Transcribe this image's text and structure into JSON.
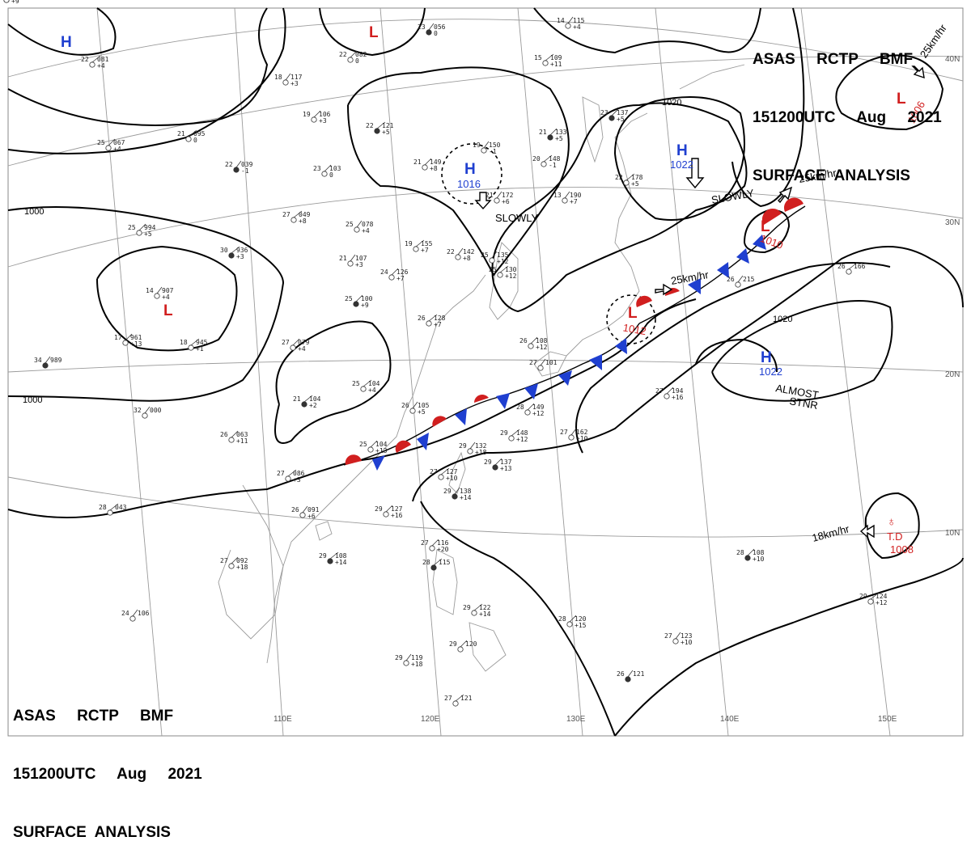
{
  "header": {
    "line1": "ASAS     RCTP     BMF",
    "line2": "151200UTC     Aug     2021",
    "line3": "SURFACE  ANALYSIS"
  },
  "footer": {
    "line1": "ASAS     RCTP     BMF",
    "line2": "151200UTC     Aug     2021",
    "line3": "SURFACE  ANALYSIS"
  },
  "grid_labels": {
    "lon": [
      "110E",
      "120E",
      "130E",
      "140E",
      "150E"
    ],
    "lat": [
      "40N",
      "30N",
      "20N",
      "10N"
    ]
  },
  "isobar_labels": [
    "1000",
    "1000",
    "1020",
    "1020"
  ],
  "pressure_centers": [
    {
      "type": "H",
      "value": "",
      "color": "#1f3fd0"
    },
    {
      "type": "L",
      "value": "",
      "color": "#d11f1f"
    },
    {
      "type": "H",
      "value": "1016",
      "color": "#1f3fd0"
    },
    {
      "type": "H",
      "value": "1022",
      "color": "#1f3fd0"
    },
    {
      "type": "L",
      "value": "1006",
      "color": "#d11f1f"
    },
    {
      "type": "L",
      "value": "1010",
      "color": "#d11f1f"
    },
    {
      "type": "L",
      "value": "1012",
      "color": "#d11f1f"
    },
    {
      "type": "H",
      "value": "1022",
      "color": "#1f3fd0"
    },
    {
      "type": "L",
      "value": "",
      "color": "#d11f1f"
    },
    {
      "type": "TD",
      "value": "1008",
      "label": "T.D",
      "color": "#d11f1f"
    }
  ],
  "motion_labels": [
    "SLOWLY",
    "SLOWLY",
    "25km/hr",
    "25km/hr",
    "ALMOST",
    "STNR",
    "18km/hr",
    "25km/hr"
  ],
  "stations": [
    {
      "a": "23",
      "b": "056",
      "c": "0"
    },
    {
      "a": "22",
      "b": "082",
      "c": "0"
    },
    {
      "a": "22",
      "b": "081",
      "c": "+4"
    },
    {
      "a": "18",
      "b": "117",
      "c": "+3"
    },
    {
      "a": "19",
      "b": "106",
      "c": "+3"
    },
    {
      "a": "22",
      "b": "121",
      "c": "+5"
    },
    {
      "a": "19",
      "b": "150",
      "c": "-1"
    },
    {
      "a": "21",
      "b": "149",
      "c": "+8"
    },
    {
      "a": "15",
      "b": "109",
      "c": "+11"
    },
    {
      "a": "14",
      "b": "115",
      "c": "+4"
    },
    {
      "a": "21",
      "b": "133",
      "c": "+5"
    },
    {
      "a": "20",
      "b": "148",
      "c": "-1"
    },
    {
      "a": "13",
      "b": "190",
      "c": "+7"
    },
    {
      "a": "25",
      "b": "067",
      "c": "+4"
    },
    {
      "a": "21",
      "b": "095",
      "c": "0"
    },
    {
      "a": "22",
      "b": "039",
      "c": "-1"
    },
    {
      "a": "23",
      "b": "103",
      "c": "0"
    },
    {
      "a": "27",
      "b": "049",
      "c": "+8"
    },
    {
      "a": "25",
      "b": "078",
      "c": "+4"
    },
    {
      "a": "25",
      "b": "994",
      "c": "+5"
    },
    {
      "a": "30",
      "b": "936",
      "c": "+3"
    },
    {
      "a": "21",
      "b": "107",
      "c": "+3"
    },
    {
      "a": "24",
      "b": "126",
      "c": "+7"
    },
    {
      "a": "19",
      "b": "155",
      "c": "+7"
    },
    {
      "a": "22",
      "b": "142",
      "c": "+8"
    },
    {
      "a": "25",
      "b": "100",
      "c": "+9"
    },
    {
      "a": "26",
      "b": "128",
      "c": "+7"
    },
    {
      "a": "14",
      "b": "907",
      "c": "+4"
    },
    {
      "a": "17",
      "b": "961",
      "c": "+13"
    },
    {
      "a": "18",
      "b": "945",
      "c": "+1"
    },
    {
      "a": "34",
      "b": "989",
      "c": ""
    },
    {
      "a": "27",
      "b": "079",
      "c": "+4"
    },
    {
      "a": "25",
      "b": "104",
      "c": "+4"
    },
    {
      "a": "26",
      "b": "105",
      "c": "+5"
    },
    {
      "a": "25",
      "b": "104",
      "c": "+13"
    },
    {
      "a": "21",
      "b": "104",
      "c": "+2"
    },
    {
      "a": "32",
      "b": "000",
      "c": ""
    },
    {
      "a": "26",
      "b": "063",
      "c": "+11"
    },
    {
      "a": "27",
      "b": "086",
      "c": "+3"
    },
    {
      "a": "29",
      "b": "132",
      "c": "+18"
    },
    {
      "a": "29",
      "b": "137",
      "c": "+13"
    },
    {
      "a": "29",
      "b": "148",
      "c": "+12"
    },
    {
      "a": "27",
      "b": "162",
      "c": "+10"
    },
    {
      "a": "28",
      "b": "149",
      "c": "+12"
    },
    {
      "a": "27",
      "b": "127",
      "c": "+10"
    },
    {
      "a": "29",
      "b": "138",
      "c": "+14"
    },
    {
      "a": "29",
      "b": "127",
      "c": "+16"
    },
    {
      "a": "28",
      "b": "043",
      "c": ""
    },
    {
      "a": "26",
      "b": "091",
      "c": "+6"
    },
    {
      "a": "27",
      "b": "092",
      "c": "+18"
    },
    {
      "a": "29",
      "b": "108",
      "c": "+14"
    },
    {
      "a": "24",
      "b": "106",
      "c": ""
    },
    {
      "a": "27",
      "b": "194",
      "c": "+16"
    },
    {
      "a": "26",
      "b": "166",
      "c": ""
    },
    {
      "a": "26",
      "b": "215",
      "c": ""
    },
    {
      "a": "28",
      "b": "108",
      "c": "+10"
    },
    {
      "a": "29",
      "b": "124",
      "c": "+12"
    },
    {
      "a": "27",
      "b": "123",
      "c": "+10"
    },
    {
      "a": "28",
      "b": "120",
      "c": "+15"
    },
    {
      "a": "29",
      "b": "122",
      "c": "+14"
    },
    {
      "a": "26",
      "b": "121",
      "c": ""
    },
    {
      "a": "29",
      "b": "120",
      "c": ""
    },
    {
      "a": "27",
      "b": "121",
      "c": ""
    },
    {
      "a": "29",
      "b": "119",
      "c": "+18"
    },
    {
      "a": "27",
      "b": "116",
      "c": "+20"
    },
    {
      "a": "28",
      "b": "115",
      "c": ""
    },
    {
      "a": "27",
      "b": "101",
      "c": ""
    },
    {
      "a": "26",
      "b": "108",
      "c": "+12"
    },
    {
      "a": "25",
      "b": "130",
      "c": "+12"
    },
    {
      "a": "25",
      "b": "135",
      "c": "+12"
    },
    {
      "a": "23",
      "b": "137",
      "c": "+5"
    },
    {
      "a": "22",
      "b": "178",
      "c": "+5"
    },
    {
      "a": "21",
      "b": "172",
      "c": "+6"
    },
    {
      "a": "22",
      "b": "185",
      "c": ""
    },
    {
      "a": "22",
      "b": "153",
      "c": "+9"
    }
  ]
}
